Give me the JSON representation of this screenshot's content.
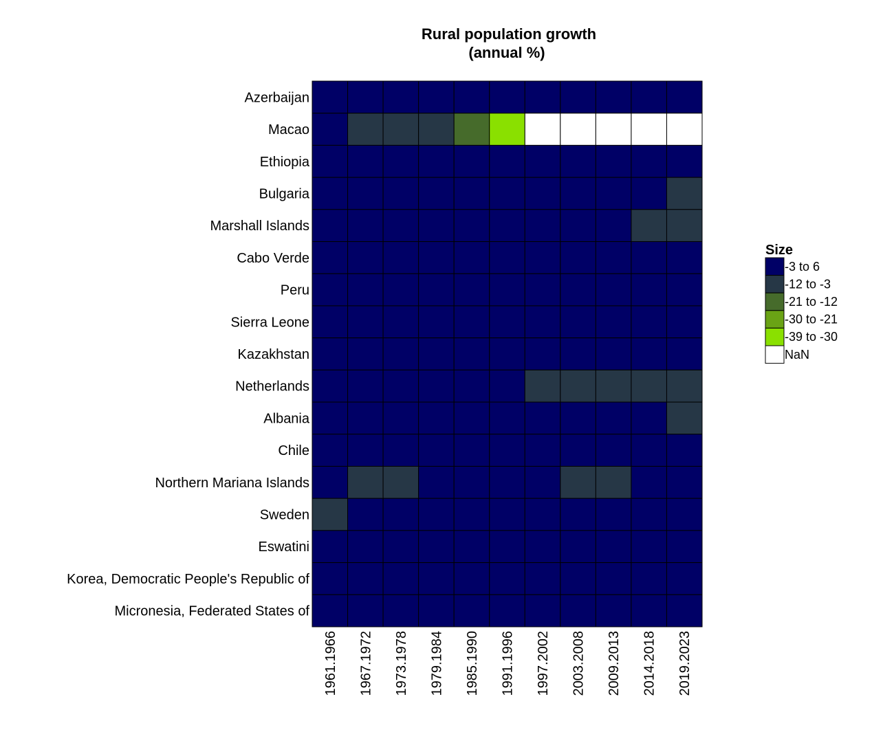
{
  "chart_data": {
    "type": "heatmap",
    "title": [
      "Rural population growth",
      "(annual %)"
    ],
    "x": [
      "1961.1966",
      "1967.1972",
      "1973.1978",
      "1979.1984",
      "1985.1990",
      "1991.1996",
      "1997.2002",
      "2003.2008",
      "2009.2013",
      "2014.2018",
      "2019.2023"
    ],
    "y": [
      "Azerbaijan",
      "Macao",
      "Ethiopia",
      "Bulgaria",
      "Marshall Islands",
      "Cabo Verde",
      "Peru",
      "Sierra Leone",
      "Kazakhstan",
      "Netherlands",
      "Albania",
      "Chile",
      "Northern Mariana Islands",
      "Sweden",
      "Eswatini",
      "Korea, Democratic People's Republic of",
      "Micronesia, Federated States of"
    ],
    "values": [
      [
        "-3 to 6",
        "-3 to 6",
        "-3 to 6",
        "-3 to 6",
        "-3 to 6",
        "-3 to 6",
        "-3 to 6",
        "-3 to 6",
        "-3 to 6",
        "-3 to 6",
        "-3 to 6"
      ],
      [
        "-3 to 6",
        "-12 to -3",
        "-12 to -3",
        "-12 to -3",
        "-21 to -12",
        "-39 to -30",
        "NaN",
        "NaN",
        "NaN",
        "NaN",
        "NaN"
      ],
      [
        "-3 to 6",
        "-3 to 6",
        "-3 to 6",
        "-3 to 6",
        "-3 to 6",
        "-3 to 6",
        "-3 to 6",
        "-3 to 6",
        "-3 to 6",
        "-3 to 6",
        "-3 to 6"
      ],
      [
        "-3 to 6",
        "-3 to 6",
        "-3 to 6",
        "-3 to 6",
        "-3 to 6",
        "-3 to 6",
        "-3 to 6",
        "-3 to 6",
        "-3 to 6",
        "-3 to 6",
        "-12 to -3"
      ],
      [
        "-3 to 6",
        "-3 to 6",
        "-3 to 6",
        "-3 to 6",
        "-3 to 6",
        "-3 to 6",
        "-3 to 6",
        "-3 to 6",
        "-3 to 6",
        "-12 to -3",
        "-12 to -3"
      ],
      [
        "-3 to 6",
        "-3 to 6",
        "-3 to 6",
        "-3 to 6",
        "-3 to 6",
        "-3 to 6",
        "-3 to 6",
        "-3 to 6",
        "-3 to 6",
        "-3 to 6",
        "-3 to 6"
      ],
      [
        "-3 to 6",
        "-3 to 6",
        "-3 to 6",
        "-3 to 6",
        "-3 to 6",
        "-3 to 6",
        "-3 to 6",
        "-3 to 6",
        "-3 to 6",
        "-3 to 6",
        "-3 to 6"
      ],
      [
        "-3 to 6",
        "-3 to 6",
        "-3 to 6",
        "-3 to 6",
        "-3 to 6",
        "-3 to 6",
        "-3 to 6",
        "-3 to 6",
        "-3 to 6",
        "-3 to 6",
        "-3 to 6"
      ],
      [
        "-3 to 6",
        "-3 to 6",
        "-3 to 6",
        "-3 to 6",
        "-3 to 6",
        "-3 to 6",
        "-3 to 6",
        "-3 to 6",
        "-3 to 6",
        "-3 to 6",
        "-3 to 6"
      ],
      [
        "-3 to 6",
        "-3 to 6",
        "-3 to 6",
        "-3 to 6",
        "-3 to 6",
        "-3 to 6",
        "-12 to -3",
        "-12 to -3",
        "-12 to -3",
        "-12 to -3",
        "-12 to -3"
      ],
      [
        "-3 to 6",
        "-3 to 6",
        "-3 to 6",
        "-3 to 6",
        "-3 to 6",
        "-3 to 6",
        "-3 to 6",
        "-3 to 6",
        "-3 to 6",
        "-3 to 6",
        "-12 to -3"
      ],
      [
        "-3 to 6",
        "-3 to 6",
        "-3 to 6",
        "-3 to 6",
        "-3 to 6",
        "-3 to 6",
        "-3 to 6",
        "-3 to 6",
        "-3 to 6",
        "-3 to 6",
        "-3 to 6"
      ],
      [
        "-3 to 6",
        "-12 to -3",
        "-12 to -3",
        "-3 to 6",
        "-3 to 6",
        "-3 to 6",
        "-3 to 6",
        "-12 to -3",
        "-12 to -3",
        "-3 to 6",
        "-3 to 6"
      ],
      [
        "-12 to -3",
        "-3 to 6",
        "-3 to 6",
        "-3 to 6",
        "-3 to 6",
        "-3 to 6",
        "-3 to 6",
        "-3 to 6",
        "-3 to 6",
        "-3 to 6",
        "-3 to 6"
      ],
      [
        "-3 to 6",
        "-3 to 6",
        "-3 to 6",
        "-3 to 6",
        "-3 to 6",
        "-3 to 6",
        "-3 to 6",
        "-3 to 6",
        "-3 to 6",
        "-3 to 6",
        "-3 to 6"
      ],
      [
        "-3 to 6",
        "-3 to 6",
        "-3 to 6",
        "-3 to 6",
        "-3 to 6",
        "-3 to 6",
        "-3 to 6",
        "-3 to 6",
        "-3 to 6",
        "-3 to 6",
        "-3 to 6"
      ],
      [
        "-3 to 6",
        "-3 to 6",
        "-3 to 6",
        "-3 to 6",
        "-3 to 6",
        "-3 to 6",
        "-3 to 6",
        "-3 to 6",
        "-3 to 6",
        "-3 to 6",
        "-3 to 6"
      ]
    ],
    "legend": {
      "title": "Size",
      "placement": "right",
      "items": [
        {
          "label": "-3 to 6",
          "color": "#000066"
        },
        {
          "label": "-12 to -3",
          "color": "#263746"
        },
        {
          "label": "-21 to -12",
          "color": "#466b2b"
        },
        {
          "label": "-30 to -21",
          "color": "#6aa315"
        },
        {
          "label": "-39 to -30",
          "color": "#8ae000"
        },
        {
          "label": "NaN",
          "color": "#ffffff"
        }
      ]
    }
  }
}
